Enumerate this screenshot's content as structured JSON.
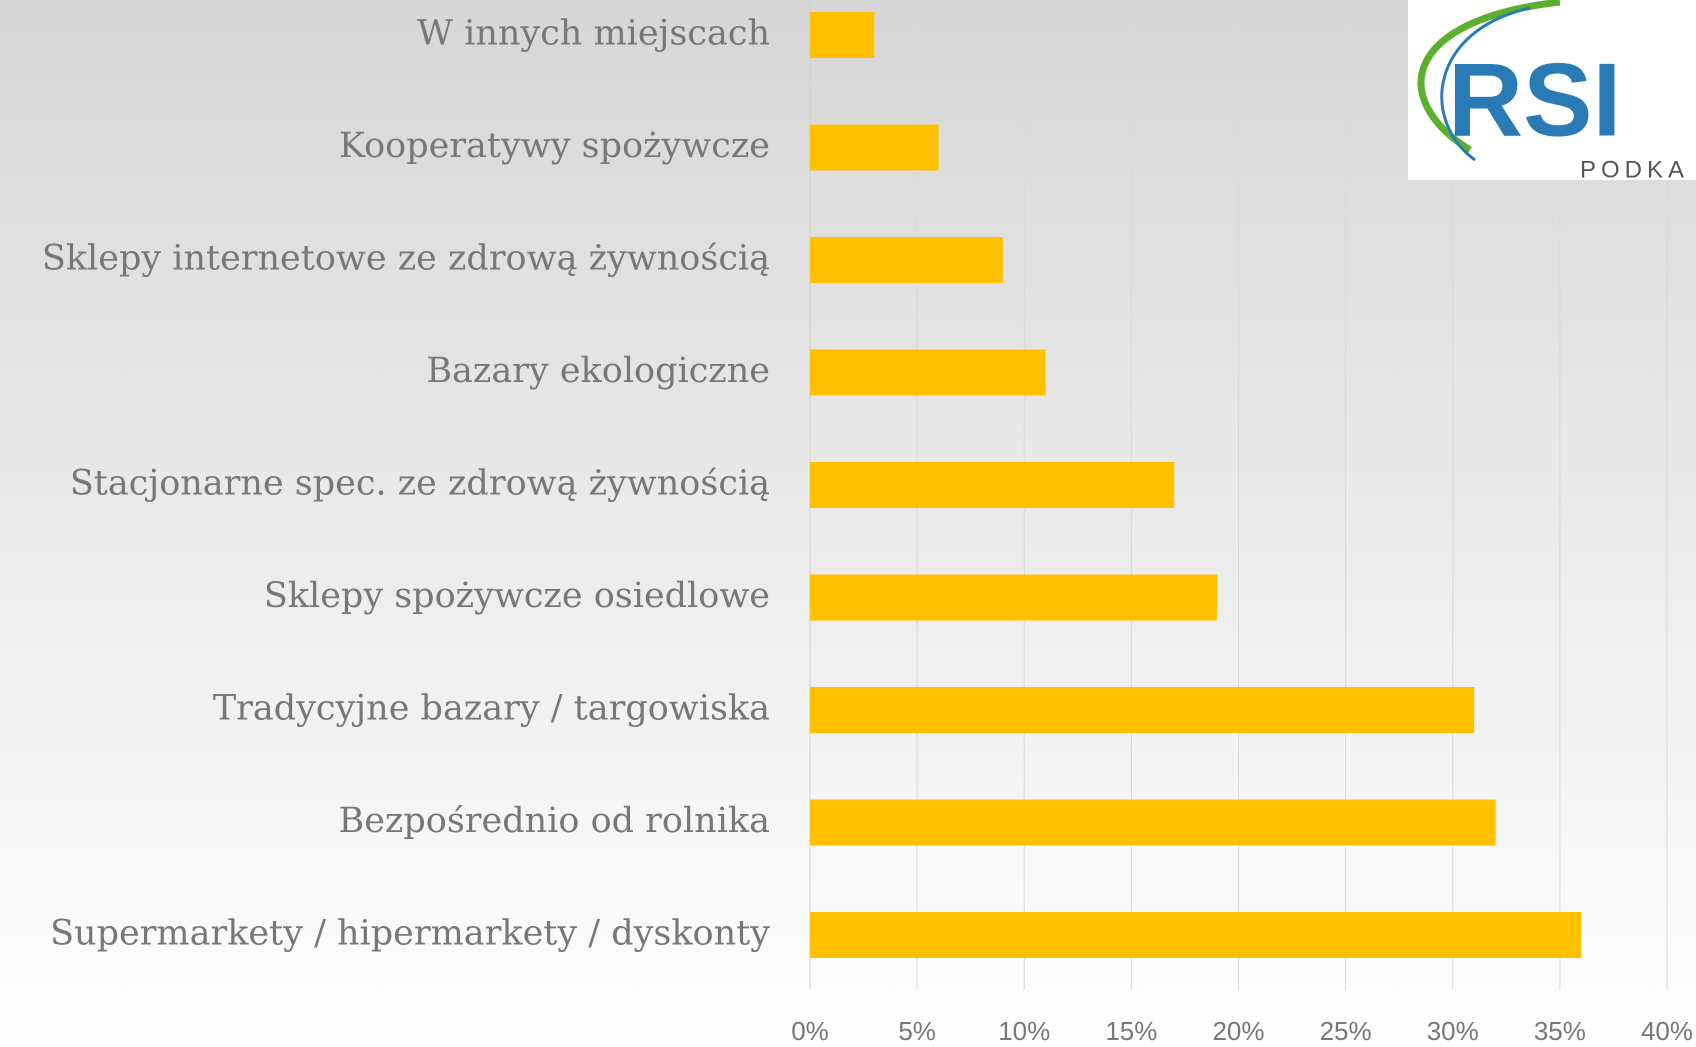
{
  "chart_data": {
    "type": "barh",
    "categories": [
      "W innych miejscach",
      "Kooperatywy spożywcze",
      "Sklepy internetowe ze zdrową żywnością",
      "Bazary ekologiczne",
      "Stacjonarne spec. ze zdrową żywnością",
      "Sklepy spożywcze osiedlowe",
      "Tradycyjne bazary / targowiska",
      "Bezpośrednio od rolnika",
      "Supermarkety / hipermarkety / dyskonty"
    ],
    "values": [
      3,
      6,
      9,
      11,
      17,
      19,
      31,
      32,
      36
    ],
    "color": "#ffc000",
    "xlim": [
      0,
      40
    ],
    "xticks": [
      {
        "value": 0,
        "label": "0%"
      },
      {
        "value": 5,
        "label": "5%"
      },
      {
        "value": 10,
        "label": "10%"
      },
      {
        "value": 15,
        "label": "15%"
      },
      {
        "value": 20,
        "label": "20%"
      },
      {
        "value": 25,
        "label": "25%"
      },
      {
        "value": 30,
        "label": "30%"
      },
      {
        "value": 35,
        "label": "35%"
      },
      {
        "value": 40,
        "label": "40%"
      }
    ],
    "grid": true
  },
  "logo": {
    "name": "RSI",
    "subtitle": "PODKA"
  }
}
